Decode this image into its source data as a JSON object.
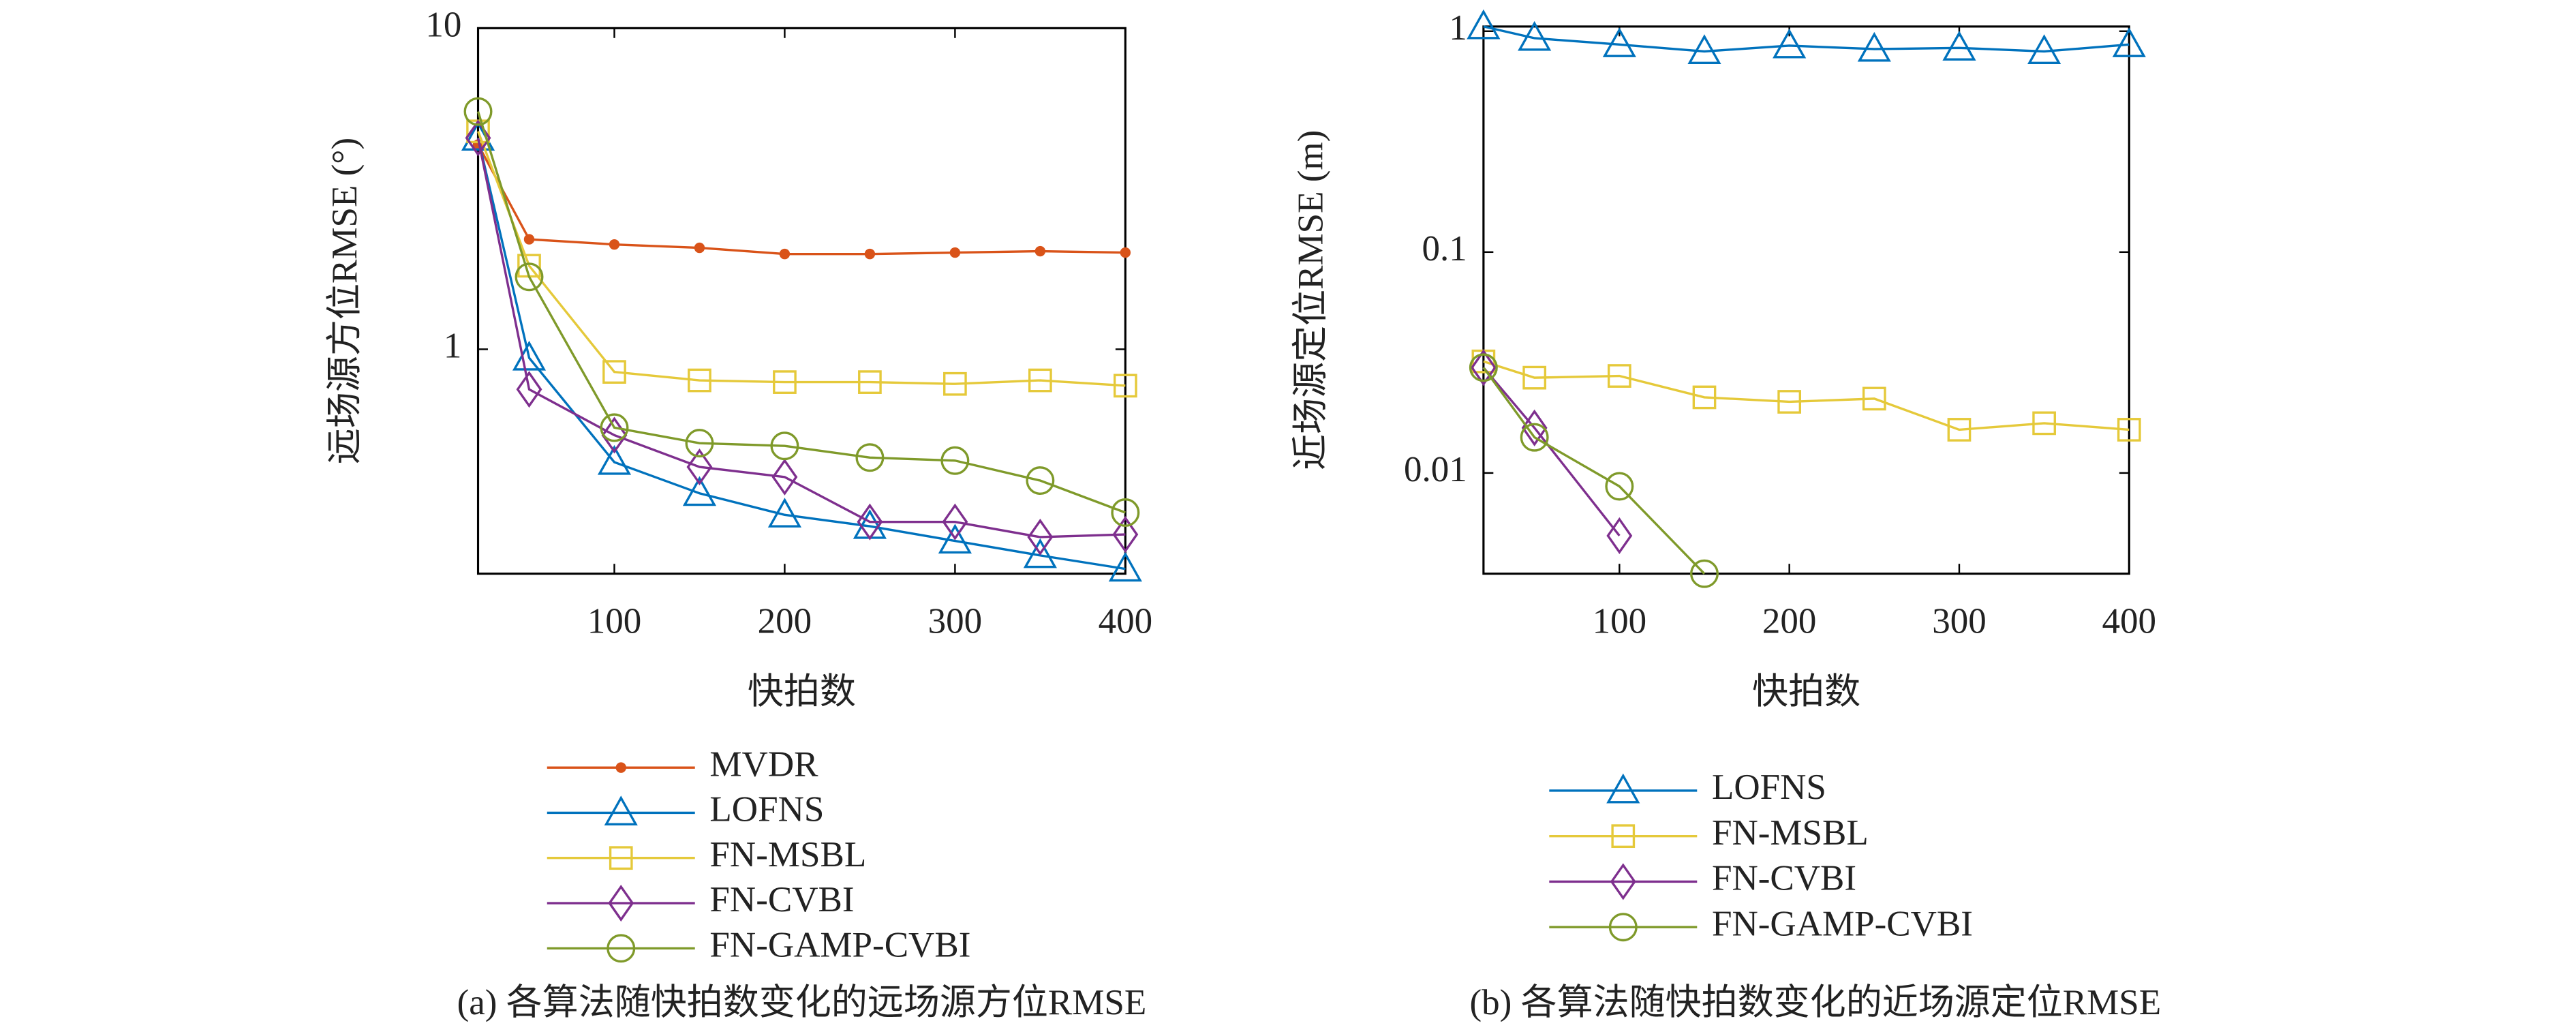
{
  "chart_data": [
    {
      "type": "line",
      "y_label": "远场源方位RMSE (°)",
      "x_label": "快拍数",
      "caption": "(a) 各算法随快拍数变化的远场源方位RMSE",
      "x": [
        20,
        50,
        100,
        150,
        200,
        250,
        300,
        350,
        400
      ],
      "xlim": [
        20,
        400
      ],
      "xticks": [
        100,
        200,
        300,
        400
      ],
      "ylim": [
        0.2,
        10
      ],
      "yticks": [
        1,
        10
      ],
      "ylog": true,
      "series": [
        {
          "name": "MVDR",
          "color": "#d95319",
          "marker": "dot",
          "values": [
            4.34,
            2.2,
            2.12,
            2.07,
            1.98,
            1.98,
            2.0,
            2.02,
            2.0
          ]
        },
        {
          "name": "LOFNS",
          "color": "#0072bd",
          "marker": "triangle",
          "values": [
            4.55,
            0.94,
            0.445,
            0.356,
            0.305,
            0.281,
            0.253,
            0.228,
            0.207
          ]
        },
        {
          "name": "FN-MSBL",
          "color": "#e5c93a",
          "marker": "square",
          "values": [
            4.77,
            1.82,
            0.85,
            0.8,
            0.79,
            0.79,
            0.78,
            0.8,
            0.77
          ]
        },
        {
          "name": "FN-CVBI",
          "color": "#7e2f8e",
          "marker": "diamond",
          "values": [
            4.55,
            0.75,
            0.54,
            0.43,
            0.4,
            0.29,
            0.29,
            0.26,
            0.265
          ]
        },
        {
          "name": "FN-GAMP-CVBI",
          "color": "#7f9a2a",
          "marker": "circle",
          "values": [
            5.5,
            1.68,
            0.57,
            0.51,
            0.5,
            0.46,
            0.45,
            0.39,
            0.31
          ]
        }
      ]
    },
    {
      "type": "line",
      "y_label": "近场源定位RMSE (m)",
      "x_label": "快拍数",
      "caption": "(b) 各算法随快拍数变化的近场源定位RMSE",
      "x": [
        20,
        50,
        100,
        150,
        200,
        250,
        300,
        350,
        400
      ],
      "xlim": [
        20,
        400
      ],
      "xticks": [
        100,
        200,
        300,
        400
      ],
      "ylim": [
        0.0035,
        1.05
      ],
      "yticks": [
        0.01,
        0.1,
        1
      ],
      "ylog": true,
      "series": [
        {
          "name": "LOFNS",
          "color": "#0072bd",
          "marker": "triangle",
          "values": [
            1.05,
            0.93,
            0.87,
            0.81,
            0.86,
            0.83,
            0.84,
            0.81,
            0.87
          ]
        },
        {
          "name": "FN-MSBL",
          "color": "#e5c93a",
          "marker": "square",
          "values": [
            0.032,
            0.027,
            0.0275,
            0.022,
            0.021,
            0.0217,
            0.0157,
            0.0168,
            0.0157
          ]
        },
        {
          "name": "FN-CVBI",
          "color": "#7e2f8e",
          "marker": "diamond",
          "values": [
            0.03,
            0.016,
            0.0052,
            null,
            null,
            null,
            null,
            null,
            null
          ]
        },
        {
          "name": "FN-GAMP-CVBI",
          "color": "#7f9a2a",
          "marker": "circle",
          "values": [
            0.03,
            0.0145,
            0.0087,
            0.0035,
            null,
            null,
            null,
            null,
            null
          ]
        }
      ]
    }
  ]
}
